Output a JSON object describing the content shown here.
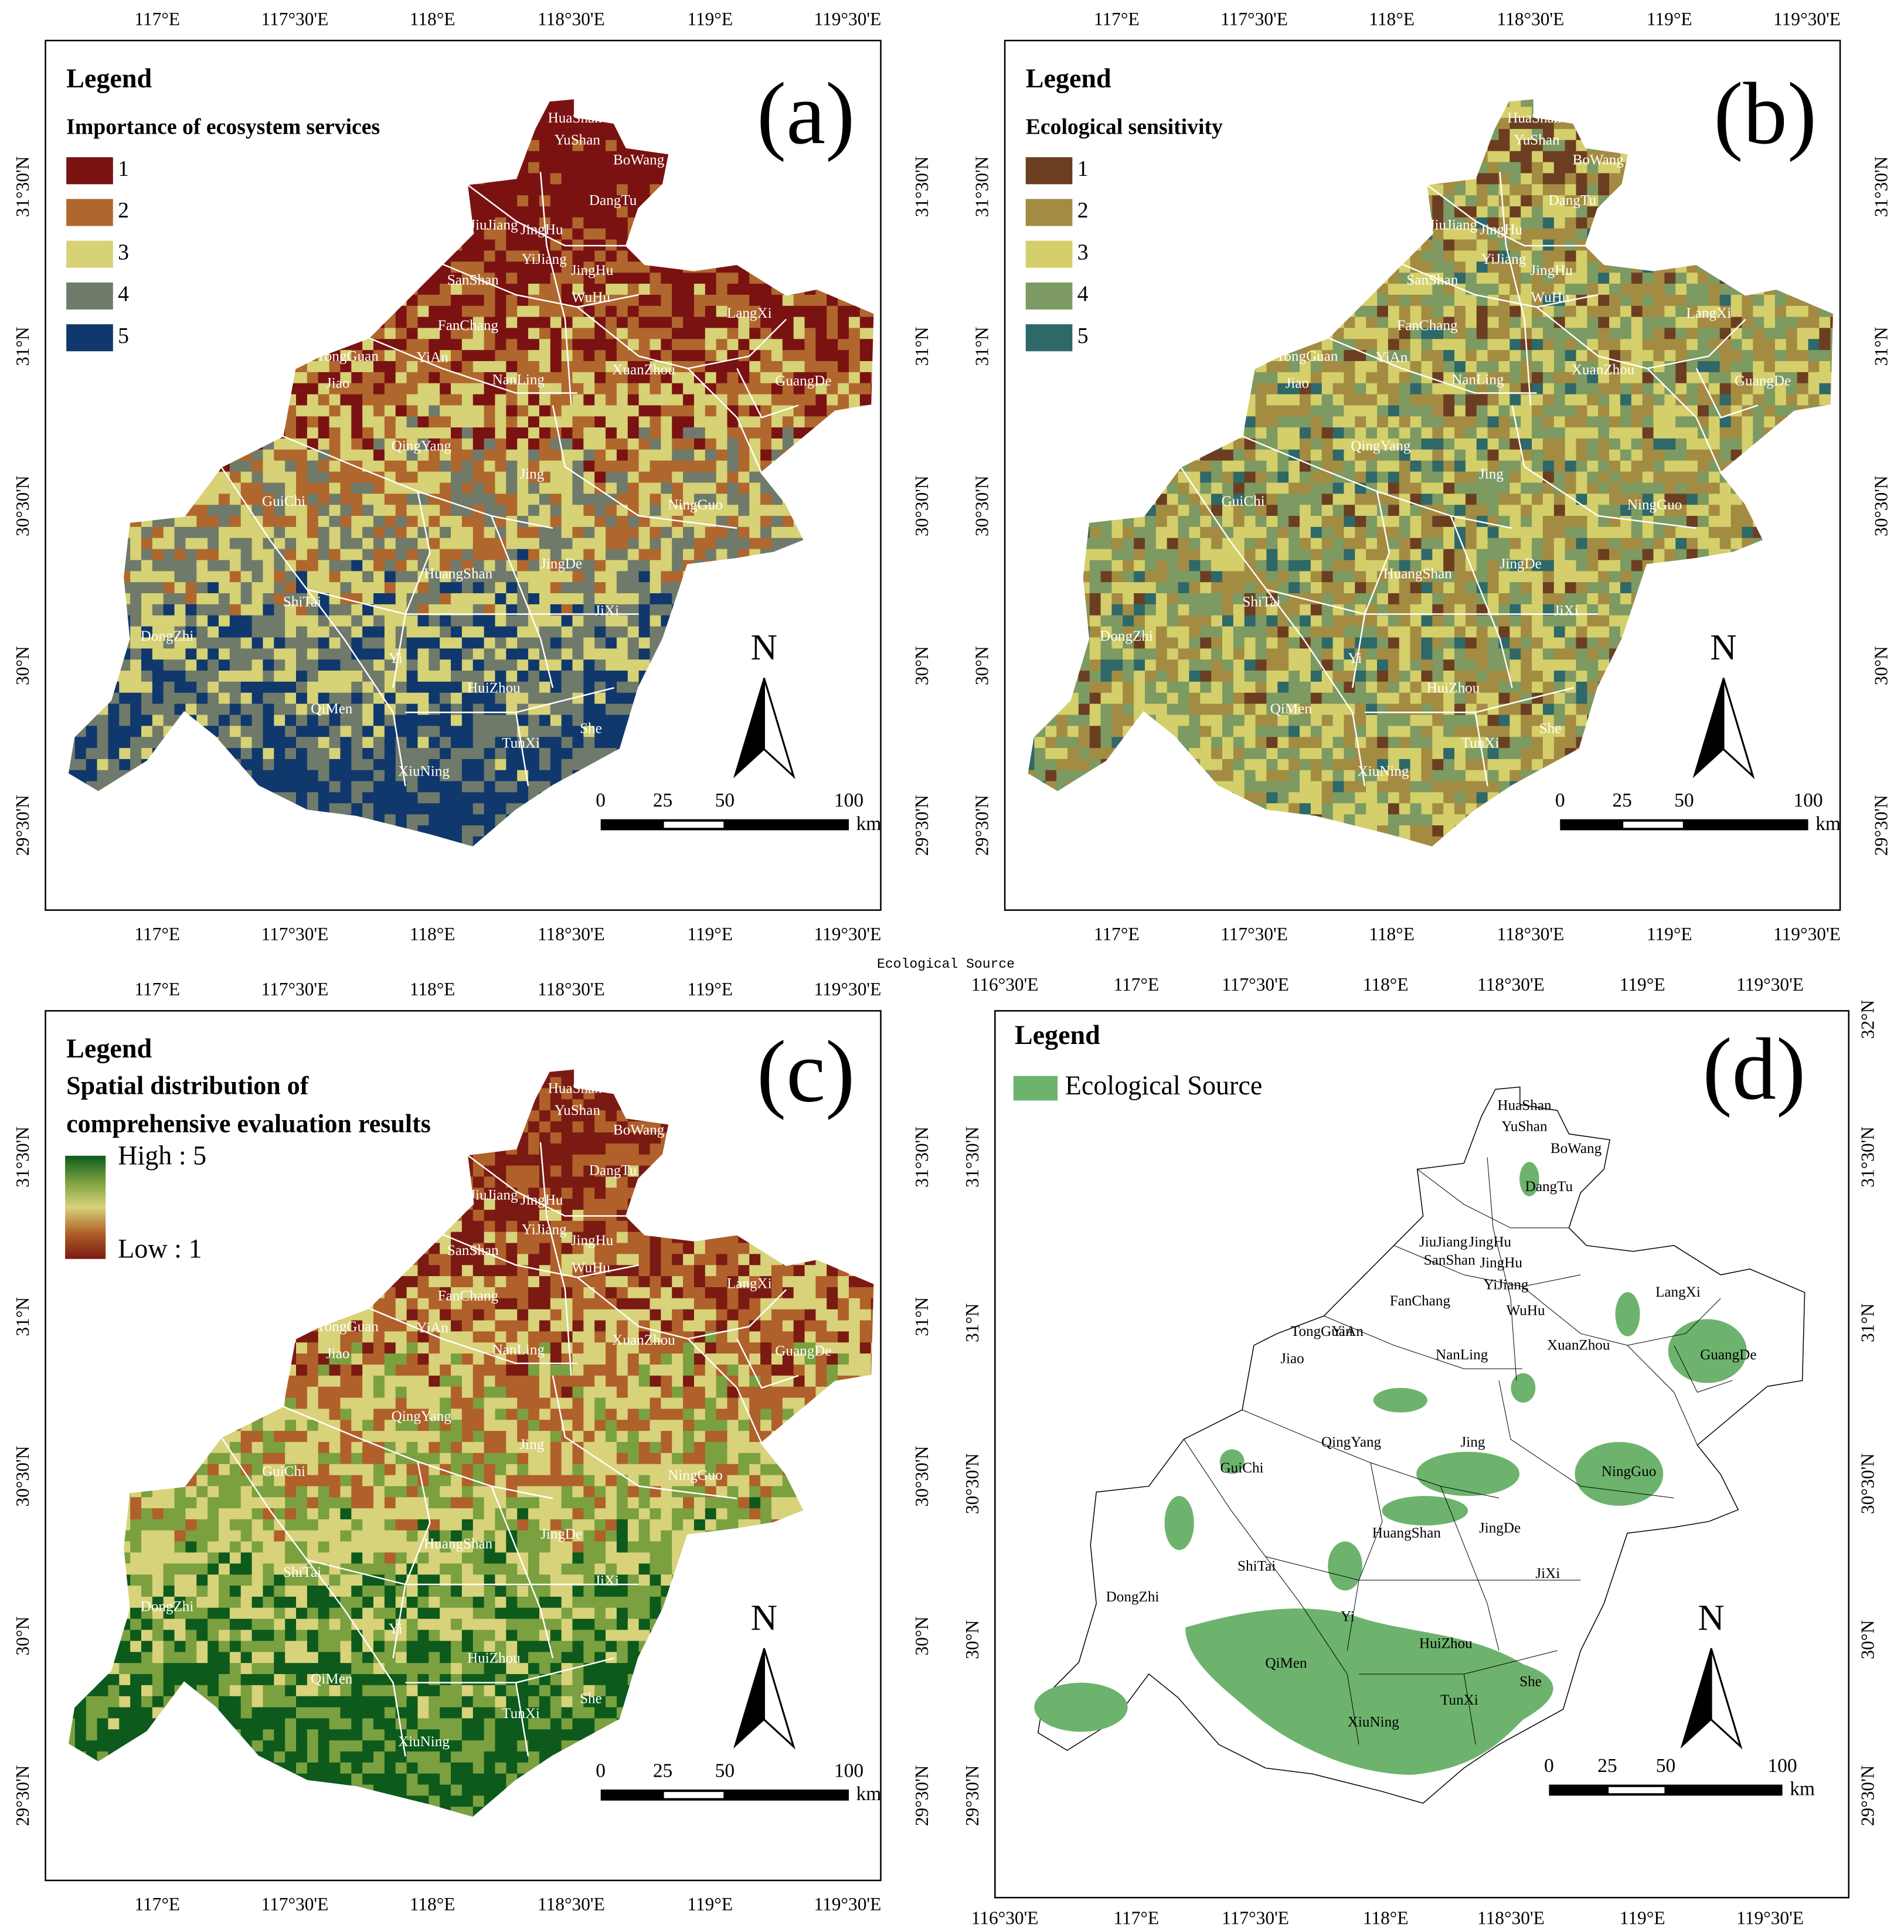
{
  "title": "Ecological Source",
  "panels": [
    {
      "letter": "(a)",
      "legend": {
        "title": "Legend",
        "subtitle": [
          "Importance of ecosystem services"
        ],
        "items": [
          {
            "label": "1",
            "color": "#7a1212"
          },
          {
            "label": "2",
            "color": "#b0672e"
          },
          {
            "label": "3",
            "color": "#d6d275"
          },
          {
            "label": "4",
            "color": "#6f7a6a"
          },
          {
            "label": "5",
            "color": "#10386c"
          }
        ]
      },
      "coords": {
        "top": [
          "117°E",
          "117°30'E",
          "118°E",
          "118°30'E",
          "119°E",
          "119°30'E"
        ],
        "bottom": [
          "117°E",
          "117°30'E",
          "118°E",
          "118°30'E",
          "119°E",
          "119°30'E"
        ],
        "left": [
          "31°30'N",
          "31°N",
          "30°30'N",
          "30°N",
          "29°30'N"
        ],
        "right": [
          "31°30'N",
          "31°N",
          "30°30'N",
          "30°N",
          "29°30'N"
        ]
      },
      "places": [
        "HuaShan",
        "YuShan",
        "BoWang",
        "DangTu",
        "JiuJiang",
        "JingHu",
        "YiJiang",
        "JingHu",
        "SanShan",
        "WuHu",
        "FanChang",
        "LangXi",
        "TongGuan",
        "YiAn",
        "Jiao",
        "NanLing",
        "XuanZhou",
        "GuangDe",
        "QingYang",
        "Jing",
        "GuiChi",
        "NingGuo",
        "HuangShan",
        "JingDe",
        "ShiTai",
        "JiXi",
        "DongZhi",
        "Yi",
        "HuiZhou",
        "QiMen",
        "TunXi",
        "She",
        "XiuNing"
      ],
      "north": "N",
      "scale_bar": {
        "labels": [
          "0",
          "25",
          "50",
          "100"
        ],
        "unit": "km"
      }
    },
    {
      "letter": "(b)",
      "legend": {
        "title": "Legend",
        "subtitle": [
          "Ecological sensitivity"
        ],
        "items": [
          {
            "label": "1",
            "color": "#6b3e22"
          },
          {
            "label": "2",
            "color": "#a48b42"
          },
          {
            "label": "3",
            "color": "#d4cf6a"
          },
          {
            "label": "4",
            "color": "#7c9a62"
          },
          {
            "label": "5",
            "color": "#2e6868"
          }
        ]
      },
      "coords": {
        "top": [
          "117°E",
          "117°30'E",
          "118°E",
          "118°30'E",
          "119°E",
          "119°30'E"
        ],
        "bottom": [
          "117°E",
          "117°30'E",
          "118°E",
          "118°30'E",
          "119°E",
          "119°30'E"
        ],
        "left": [
          "31°30'N",
          "31°N",
          "30°30'N",
          "30°N",
          "29°30'N"
        ],
        "right": [
          "31°30'N",
          "31°N",
          "30°30'N",
          "30°N",
          "29°30'N"
        ]
      },
      "places": [
        "HuaShan",
        "YuShan",
        "BoWang",
        "DangTu",
        "JiuJiang",
        "JingHu",
        "YiJiang",
        "JingHu",
        "SanShan",
        "WuHu",
        "FanChang",
        "LangXi",
        "TongGuan",
        "YiAn",
        "Jiao",
        "NanLing",
        "XuanZhou",
        "GuangDe",
        "QingYang",
        "Jing",
        "GuiChi",
        "NingGuo",
        "HuangShan",
        "JingDe",
        "ShiTai",
        "JiXi",
        "DongZhi",
        "Yi",
        "HuiZhou",
        "QiMen",
        "TunXi",
        "She",
        "XiuNing"
      ],
      "north": "N",
      "scale_bar": {
        "labels": [
          "0",
          "25",
          "50",
          "100"
        ],
        "unit": "km"
      }
    },
    {
      "letter": "(c)",
      "legend": {
        "title": "Legend",
        "subtitle": [
          "Spatial distribution of",
          "comprehensive evaluation results"
        ],
        "ramp": {
          "high": "High : 5",
          "low": "Low : 1",
          "colors": [
            "#0d5a1c",
            "#7aa040",
            "#d8d27a",
            "#b0602a",
            "#7a1a12"
          ]
        }
      },
      "coords": {
        "top": [
          "117°E",
          "117°30'E",
          "118°E",
          "118°30'E",
          "119°E",
          "119°30'E"
        ],
        "bottom": [
          "117°E",
          "117°30'E",
          "118°E",
          "118°30'E",
          "119°E",
          "119°30'E"
        ],
        "left": [
          "31°30'N",
          "31°N",
          "30°30'N",
          "30°N",
          "29°30'N"
        ],
        "right": [
          "31°30'N",
          "31°N",
          "30°30'N",
          "30°N",
          "29°30'N"
        ]
      },
      "places": [
        "HuaShan",
        "YuShan",
        "BoWang",
        "DangTu",
        "JiuJiang",
        "JingHu",
        "YiJiang",
        "JingHu",
        "SanShan",
        "WuHu",
        "FanChang",
        "LangXi",
        "TongGuan",
        "YiAn",
        "Jiao",
        "NanLing",
        "XuanZhou",
        "GuangDe",
        "QingYang",
        "Jing",
        "GuiChi",
        "NingGuo",
        "HuangShan",
        "JingDe",
        "ShiTai",
        "JiXi",
        "DongZhi",
        "Yi",
        "HuiZhou",
        "QiMen",
        "TunXi",
        "She",
        "XiuNing"
      ],
      "north": "N",
      "scale_bar": {
        "labels": [
          "0",
          "25",
          "50",
          "100"
        ],
        "unit": "km"
      }
    },
    {
      "letter": "(d)",
      "legend": {
        "title": "Legend",
        "items": [
          {
            "label": "Ecological Source",
            "color": "#6db36d"
          }
        ]
      },
      "coords": {
        "top": [
          "116°30'E",
          "117°E",
          "117°30'E",
          "118°E",
          "118°30'E",
          "119°E",
          "119°30'E"
        ],
        "bottom": [
          "116°30'E",
          "117°E",
          "117°30'E",
          "118°E",
          "118°30'E",
          "119°E",
          "119°30'E"
        ],
        "left": [
          "31°30'N",
          "31°N",
          "30°30'N",
          "30°N",
          "29°30'N"
        ],
        "right": [
          "32°N",
          "31°30'N",
          "31°N",
          "30°30'N",
          "30°N",
          "29°30'N"
        ]
      },
      "places": [
        "HuaShan",
        "YuShan",
        "BoWang",
        "DangTu",
        "JiuJiang",
        "JingHu",
        "YiJiang",
        "JingHu",
        "SanShan",
        "WuHu",
        "FanChang",
        "LangXi",
        "TongGuan",
        "YiAn",
        "Jiao",
        "NanLing",
        "XuanZhou",
        "GuangDe",
        "QingYang",
        "Jing",
        "GuiChi",
        "NingGuo",
        "HuangShan",
        "JingDe",
        "ShiTai",
        "JiXi",
        "DongZhi",
        "Yi",
        "HuiZhou",
        "QiMen",
        "TunXi",
        "She",
        "XiuNing"
      ],
      "north": "N",
      "scale_bar": {
        "labels": [
          "0",
          "25",
          "50",
          "100"
        ],
        "unit": "km"
      }
    }
  ]
}
